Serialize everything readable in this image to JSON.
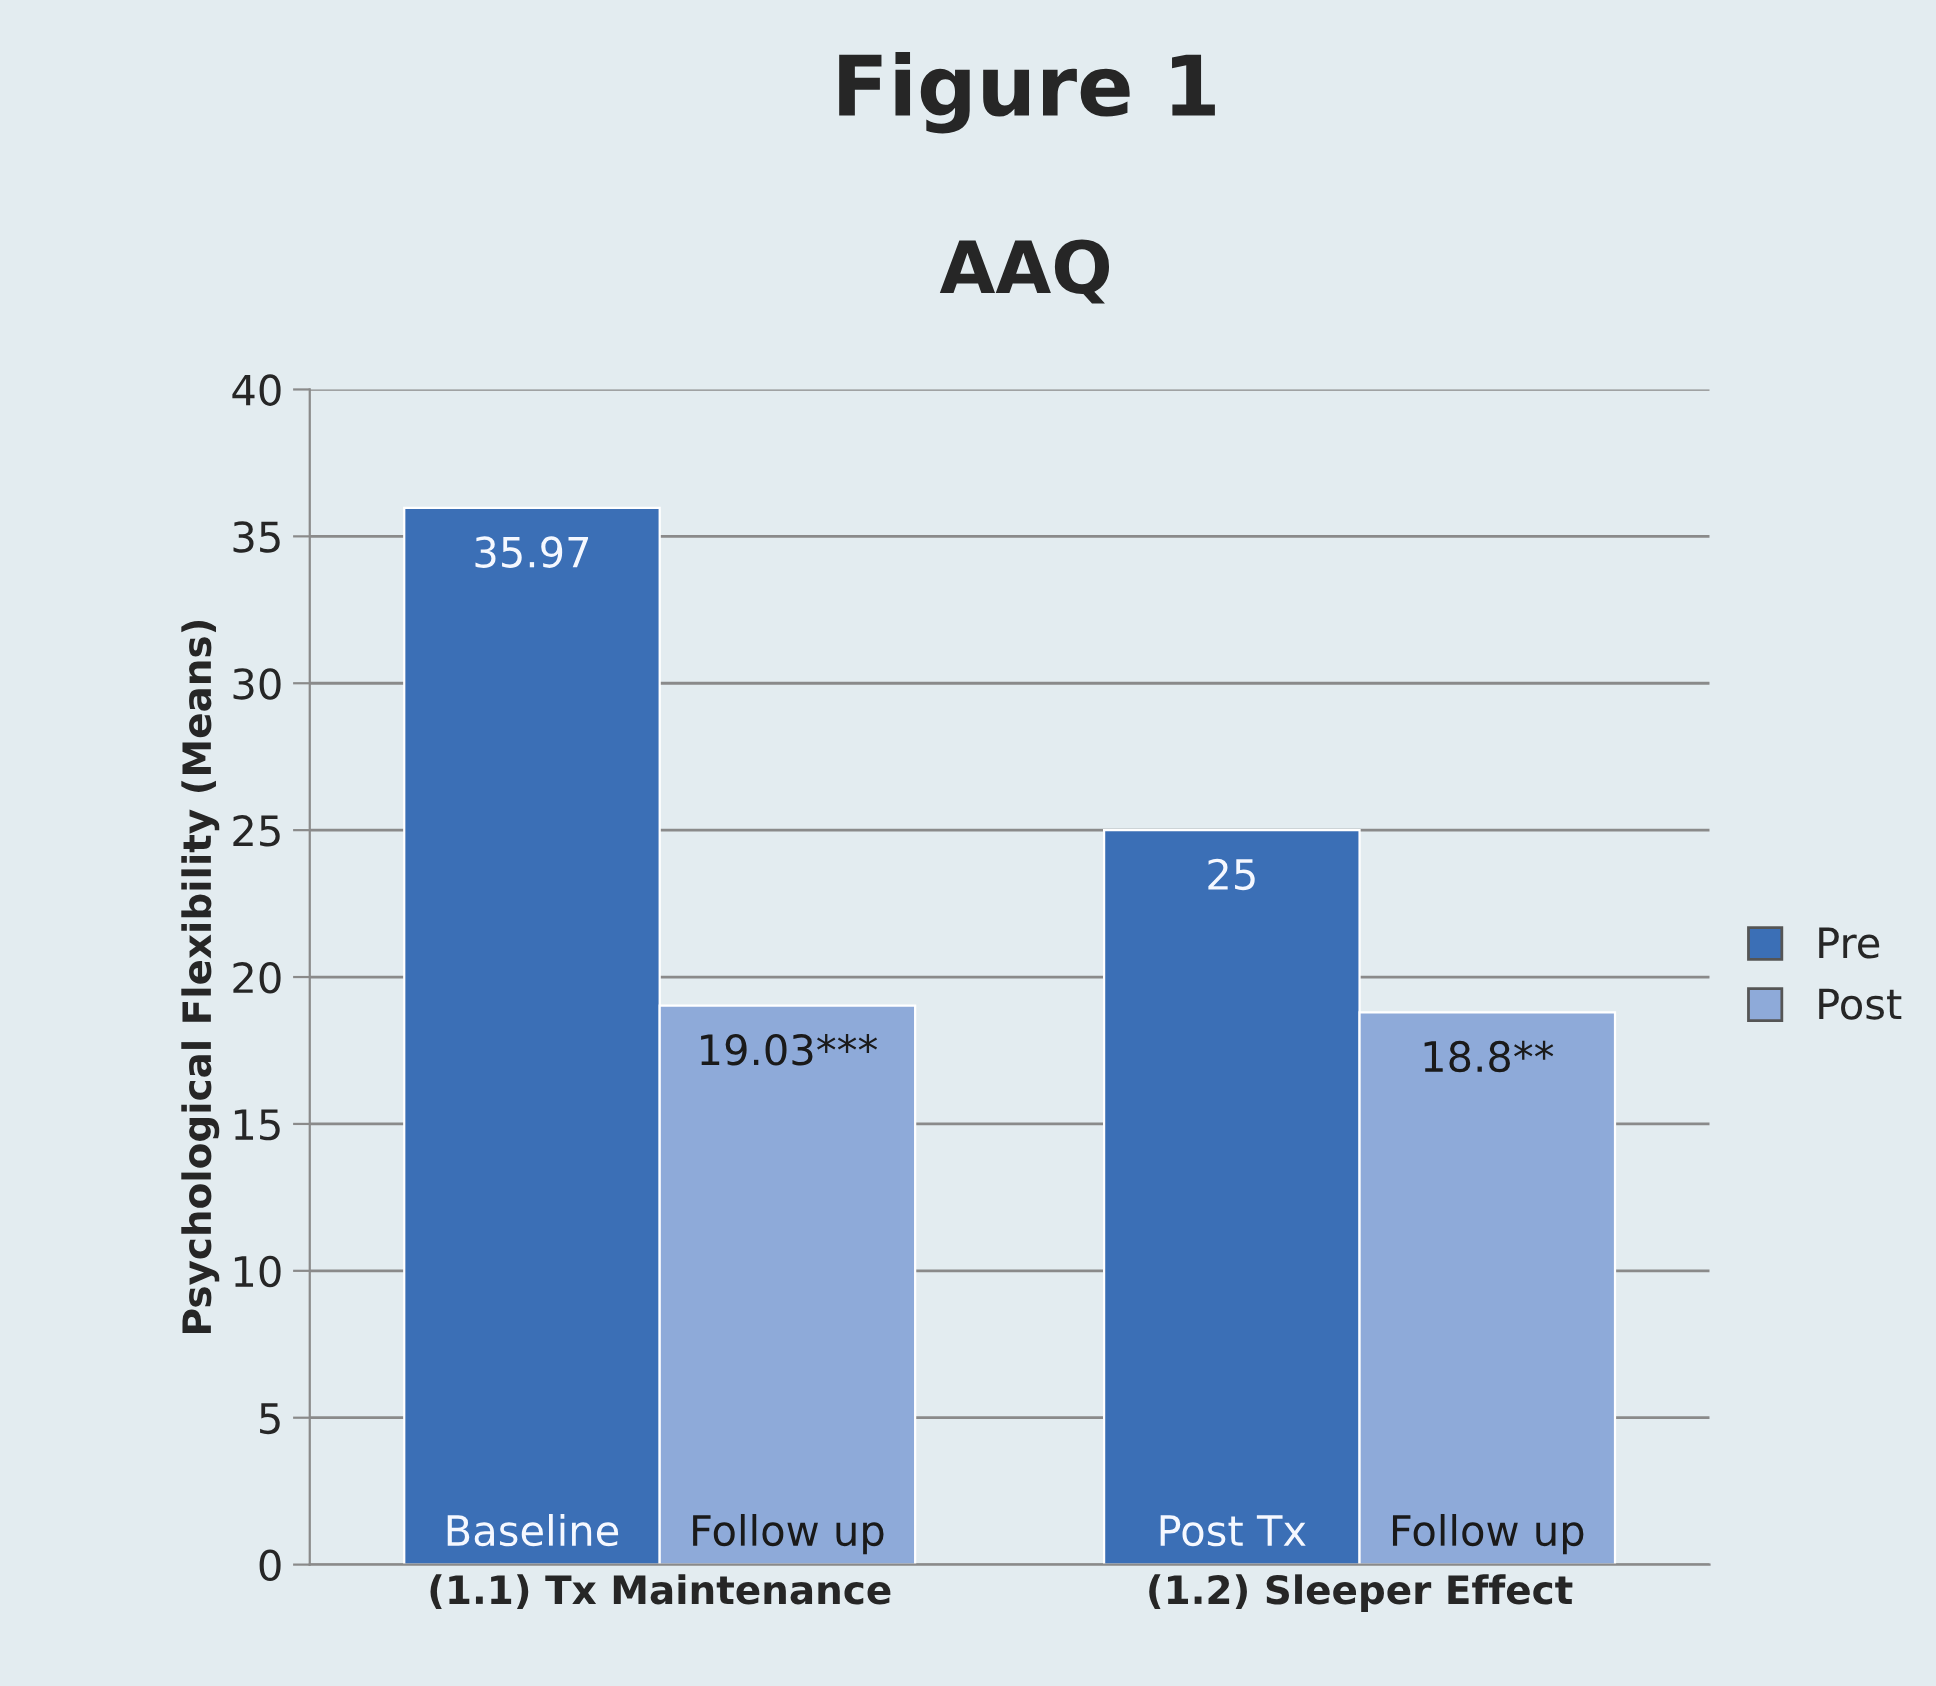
{
  "chart_data": {
    "type": "bar",
    "title": "Figure 1",
    "subtitle": "AAQ",
    "ylabel": "Psychological Flexibility (Means)",
    "categories": [
      "(1.1) Tx Maintenance",
      "(1.2) Sleeper Effect"
    ],
    "series": [
      {
        "name": "Pre",
        "color": "#3b6fb6",
        "values": [
          35.97,
          25
        ],
        "value_labels": [
          "35.97",
          "25"
        ]
      },
      {
        "name": "Post",
        "color": "#8eaad9",
        "values": [
          19.03,
          18.8
        ],
        "value_labels": [
          "19.03***",
          "18.8**"
        ]
      }
    ],
    "annotations": [
      "Baseline",
      "Post Tx",
      "Follow up",
      "Follow up"
    ],
    "ylim": [
      0,
      40
    ],
    "yticks": [
      0,
      5,
      10,
      15,
      20,
      25,
      30,
      35,
      40
    ],
    "grid": "y",
    "legend": "right"
  }
}
